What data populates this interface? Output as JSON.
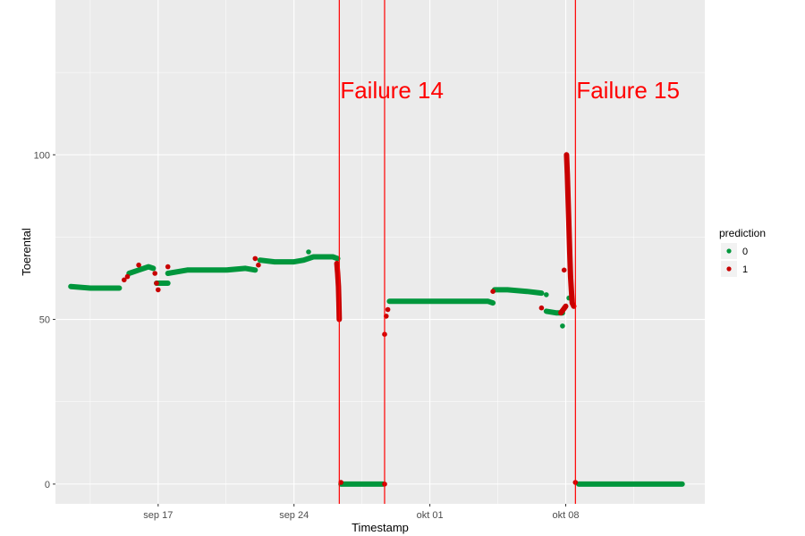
{
  "chart_data": {
    "type": "scatter",
    "title": "",
    "xlabel": "Timestamp",
    "ylabel": "Toerental",
    "xlim": [
      "2017-09-11T17:00",
      "2017-10-15T04:00"
    ],
    "ylim": [
      -6,
      147
    ],
    "x_ticks": [
      {
        "label": "sep 17",
        "date": "2017-09-17"
      },
      {
        "label": "sep 24",
        "date": "2017-09-24"
      },
      {
        "label": "okt 01",
        "date": "2017-10-01"
      },
      {
        "label": "okt 08",
        "date": "2017-10-08"
      }
    ],
    "y_ticks": [
      0,
      50,
      100
    ],
    "grid": true,
    "legend": {
      "title": "prediction",
      "position": "right",
      "entries": [
        {
          "label": "0",
          "color": "#00963c"
        },
        {
          "label": "1",
          "color": "#c80000"
        }
      ]
    },
    "annotations": [
      {
        "text": "Failure 14",
        "date": "2017-09-26T08:00",
        "color": "#ff0000"
      },
      {
        "text": "Failure 15",
        "date": "2017-10-08T12:00",
        "color": "#ff0000"
      }
    ],
    "vertical_lines": [
      {
        "date": "2017-09-26T08:00",
        "color": "#ff0000"
      },
      {
        "date": "2017-09-28T16:00",
        "color": "#ff0000"
      },
      {
        "date": "2017-10-08T12:00",
        "color": "#ff0000"
      }
    ],
    "series": [
      {
        "name": "0",
        "color": "#00963c",
        "segments": [
          [
            [
              "2017-09-12T12:00",
              60
            ],
            [
              "2017-09-13T12:00",
              59.5
            ],
            [
              "2017-09-14T12:00",
              59.5
            ],
            [
              "2017-09-15T00:00",
              59.5
            ]
          ],
          [
            [
              "2017-09-15T12:00",
              64
            ],
            [
              "2017-09-16T00:00",
              65
            ],
            [
              "2017-09-16T12:00",
              66
            ],
            [
              "2017-09-16T18:00",
              65.5
            ]
          ],
          [
            [
              "2017-09-16T22:00",
              61
            ],
            [
              "2017-09-17T12:00",
              61
            ]
          ],
          [
            [
              "2017-09-17T12:00",
              64
            ],
            [
              "2017-09-18T12:00",
              65
            ],
            [
              "2017-09-19T12:00",
              65
            ],
            [
              "2017-09-20T12:00",
              65
            ],
            [
              "2017-09-21T12:00",
              65.5
            ],
            [
              "2017-09-22T00:00",
              65
            ]
          ],
          [
            [
              "2017-09-22T06:00",
              68
            ],
            [
              "2017-09-23T00:00",
              67.5
            ],
            [
              "2017-09-24T00:00",
              67.5
            ],
            [
              "2017-09-24T12:00",
              68
            ],
            [
              "2017-09-25T00:00",
              69
            ],
            [
              "2017-09-26T00:00",
              69
            ],
            [
              "2017-09-26T06:00",
              68.5
            ]
          ],
          [
            [
              "2017-09-26T10:00",
              0
            ],
            [
              "2017-09-27T00:00",
              0
            ],
            [
              "2017-09-28T00:00",
              0
            ],
            [
              "2017-09-28T14:00",
              0
            ]
          ],
          [
            [
              "2017-09-28T22:00",
              55.5
            ],
            [
              "2017-09-29T12:00",
              55.5
            ],
            [
              "2017-09-30T12:00",
              55.5
            ],
            [
              "2017-10-01T12:00",
              55.5
            ],
            [
              "2017-10-02T12:00",
              55.5
            ],
            [
              "2017-10-03T12:00",
              55.5
            ],
            [
              "2017-10-04T00:00",
              55.5
            ],
            [
              "2017-10-04T06:00",
              55
            ]
          ],
          [
            [
              "2017-10-04T08:00",
              59
            ],
            [
              "2017-10-05T00:00",
              59
            ],
            [
              "2017-10-06T00:00",
              58.5
            ],
            [
              "2017-10-06T18:00",
              58
            ]
          ],
          [
            [
              "2017-10-07T00:00",
              52.5
            ],
            [
              "2017-10-07T12:00",
              52
            ],
            [
              "2017-10-07T20:00",
              52
            ]
          ],
          [
            [
              "2017-10-08T16:00",
              0
            ],
            [
              "2017-10-09T12:00",
              0
            ],
            [
              "2017-10-10T12:00",
              0
            ],
            [
              "2017-10-11T12:00",
              0
            ],
            [
              "2017-10-12T12:00",
              0
            ],
            [
              "2017-10-13T12:00",
              0
            ],
            [
              "2017-10-14T00:00",
              0
            ]
          ]
        ],
        "points": [
          [
            "2017-09-24T18:00",
            70.5
          ],
          [
            "2017-10-07T20:00",
            48
          ],
          [
            "2017-10-08T04:00",
            56.5
          ],
          [
            "2017-10-07T00:00",
            57.5
          ]
        ]
      },
      {
        "name": "1",
        "color": "#c80000",
        "segments": [
          [
            [
              "2017-09-26T05:00",
              67
            ],
            [
              "2017-09-26T06:00",
              64
            ],
            [
              "2017-09-26T07:00",
              60
            ],
            [
              "2017-09-26T07:30",
              55
            ],
            [
              "2017-09-26T08:00",
              50
            ]
          ],
          [
            [
              "2017-10-08T01:00",
              100
            ],
            [
              "2017-10-08T02:00",
              94
            ],
            [
              "2017-10-08T03:00",
              86
            ],
            [
              "2017-10-08T04:00",
              78
            ],
            [
              "2017-10-08T05:00",
              70
            ],
            [
              "2017-10-08T06:00",
              63
            ],
            [
              "2017-10-08T08:00",
              55
            ],
            [
              "2017-10-08T10:00",
              54
            ]
          ],
          [
            [
              "2017-10-07T18:00",
              52
            ],
            [
              "2017-10-07T21:00",
              53
            ],
            [
              "2017-10-08T00:00",
              54
            ]
          ]
        ],
        "points": [
          [
            "2017-09-15T06:00",
            62
          ],
          [
            "2017-09-15T10:00",
            63
          ],
          [
            "2017-09-16T00:00",
            66.5
          ],
          [
            "2017-09-16T20:00",
            64
          ],
          [
            "2017-09-16T22:00",
            61
          ],
          [
            "2017-09-17T00:00",
            59
          ],
          [
            "2017-09-17T12:00",
            66
          ],
          [
            "2017-09-22T00:00",
            68.5
          ],
          [
            "2017-09-22T04:00",
            66.5
          ],
          [
            "2017-09-26T10:00",
            0.5
          ],
          [
            "2017-09-28T16:00",
            0
          ],
          [
            "2017-09-28T16:00",
            45.5
          ],
          [
            "2017-09-28T18:00",
            51
          ],
          [
            "2017-09-28T20:00",
            53
          ],
          [
            "2017-10-04T06:00",
            58.5
          ],
          [
            "2017-10-06T18:00",
            53.5
          ],
          [
            "2017-10-07T22:00",
            65
          ],
          [
            "2017-10-08T12:00",
            0.5
          ]
        ]
      }
    ]
  }
}
